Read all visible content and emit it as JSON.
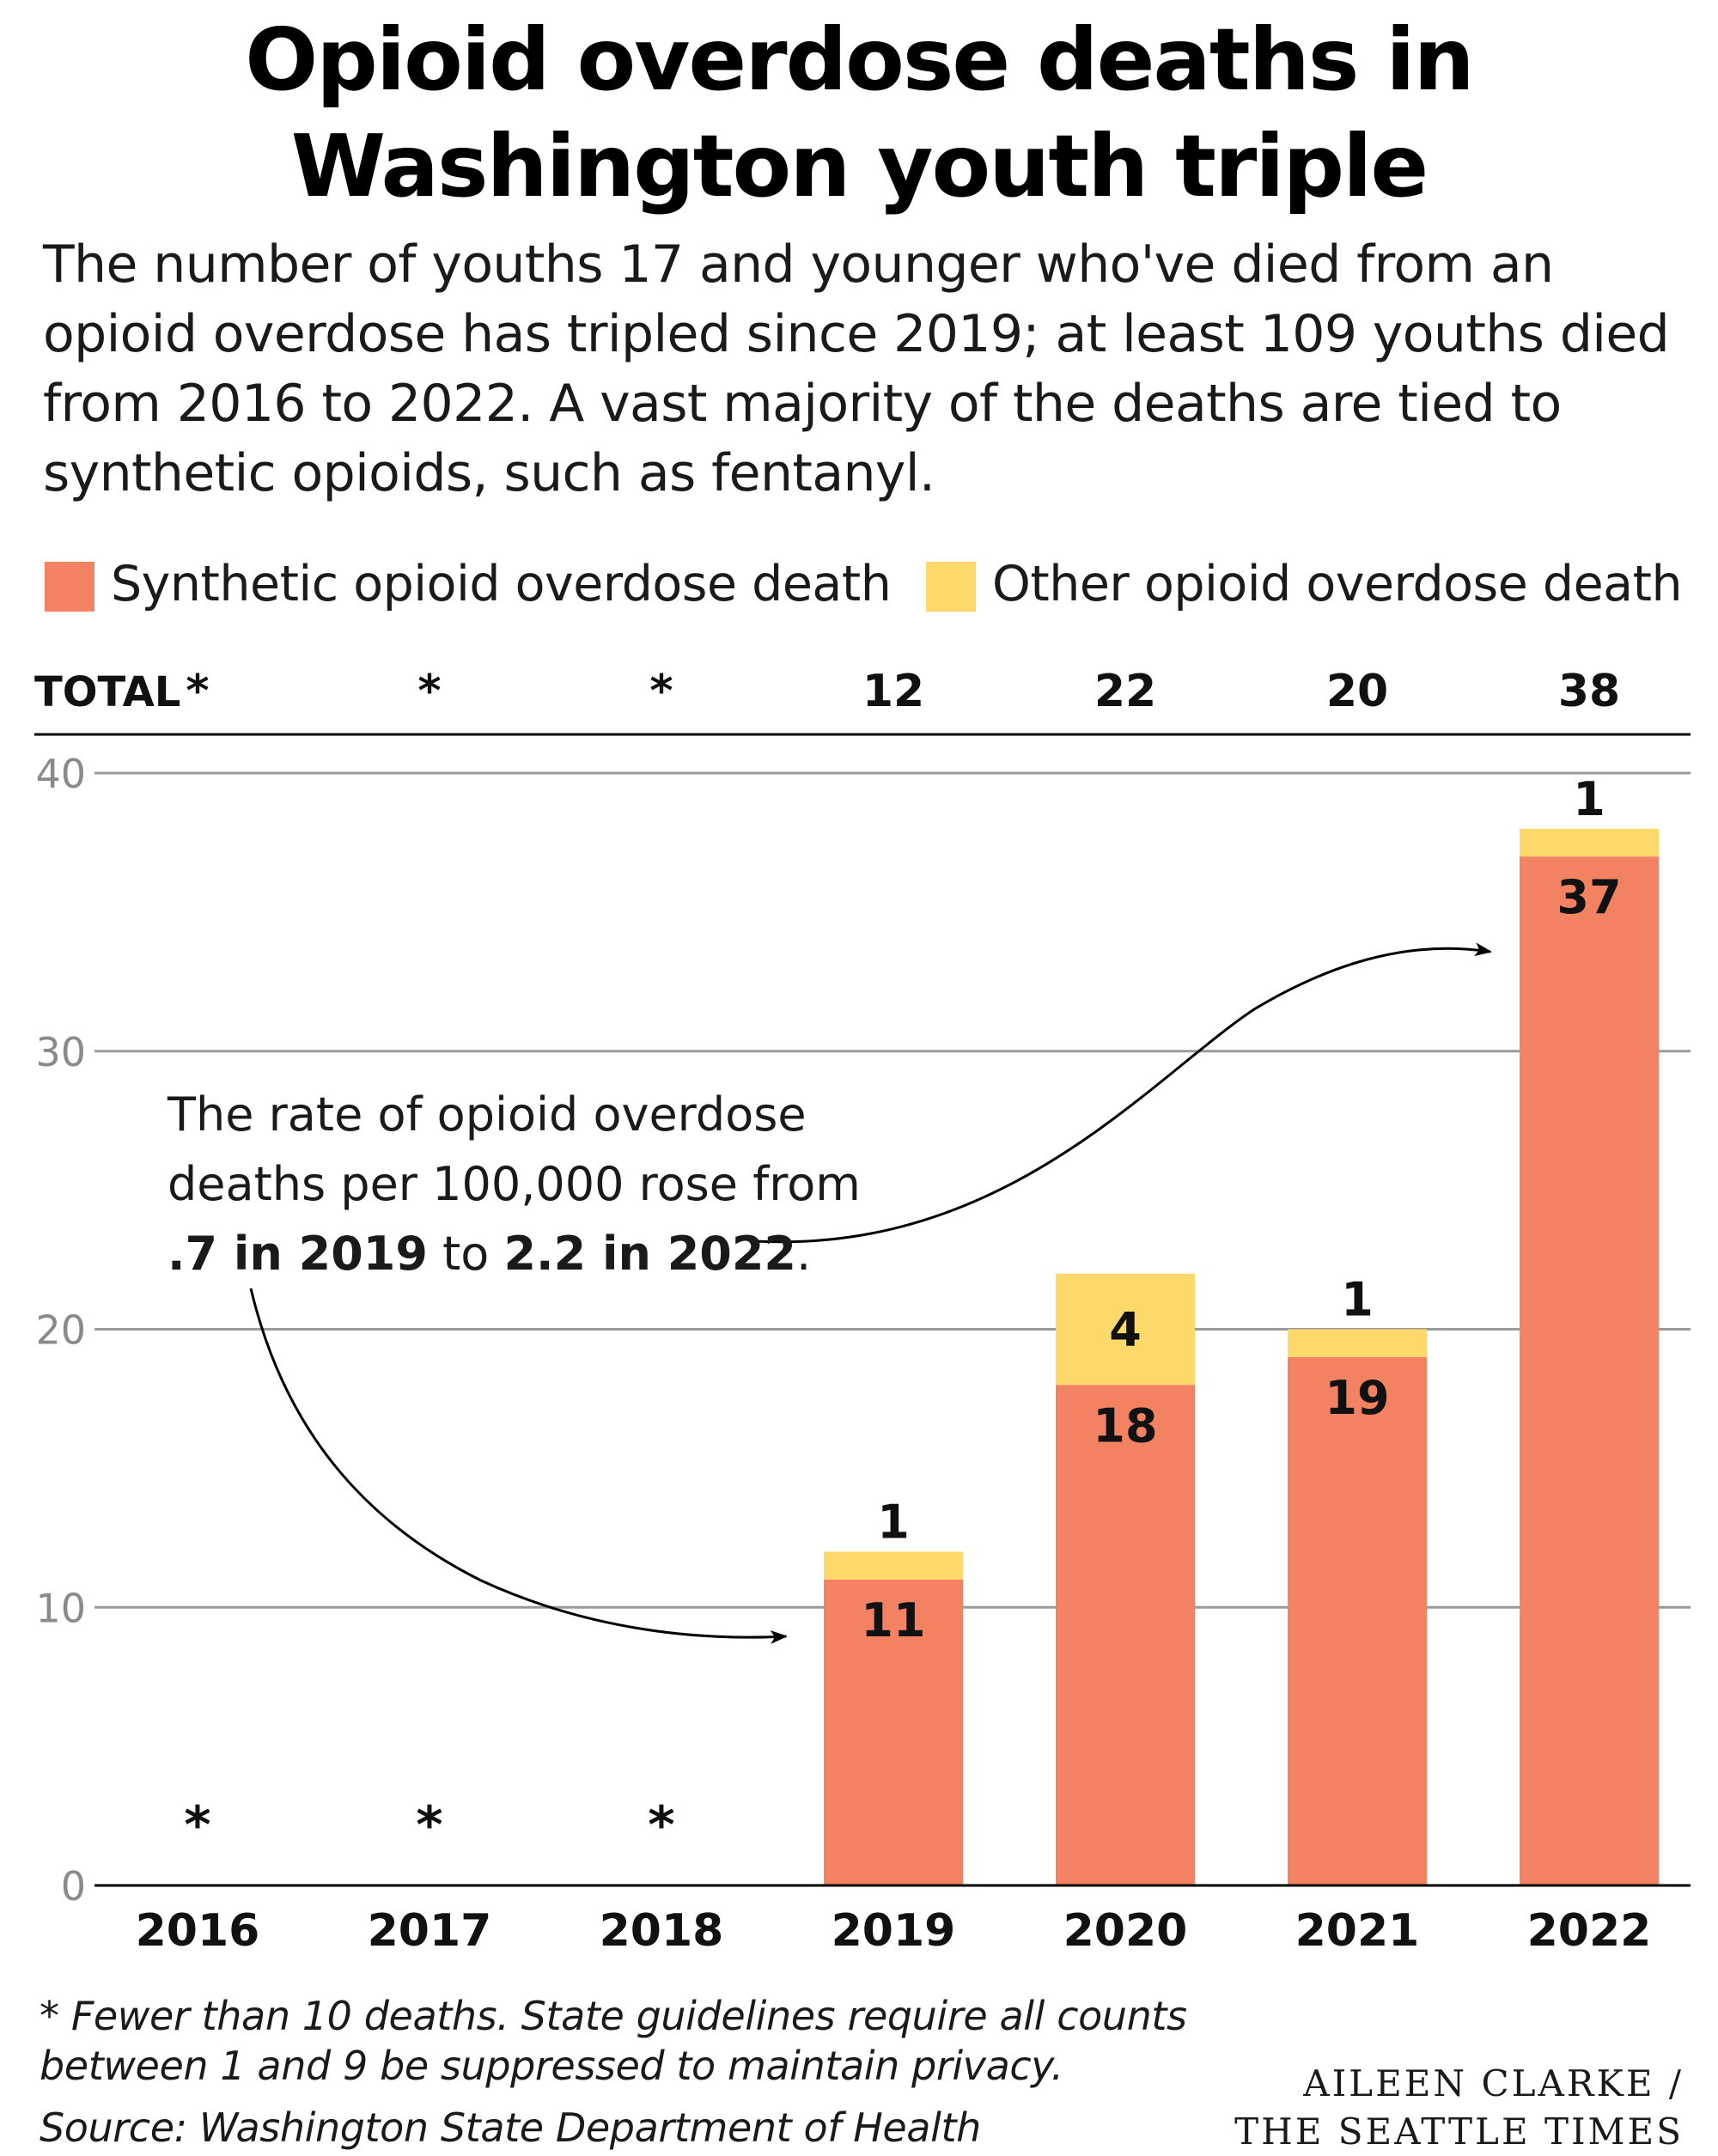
{
  "header": {
    "title_line1": "Opioid overdose deaths in",
    "title_line2": "Washington youth triple",
    "subtitle": "The number of youths 17 and younger who've died from an opioid overdose has tripled since 2019; at least 109 youths died from 2016 to 2022. A vast majority of the deaths are tied to synthetic opioids, such as fentanyl."
  },
  "legend": {
    "synthetic": "Synthetic opioid overdose death",
    "other": "Other opioid overdose death"
  },
  "colors": {
    "synthetic": "#f28262",
    "other": "#fdd86a",
    "gridline": "#9a9a9a",
    "axis_text": "#8a8a8a"
  },
  "chart_data": {
    "type": "bar",
    "stacked": true,
    "categories": [
      "2016",
      "2017",
      "2018",
      "2019",
      "2020",
      "2021",
      "2022"
    ],
    "series": [
      {
        "name": "Synthetic opioid overdose death",
        "values": [
          null,
          null,
          null,
          11,
          18,
          19,
          37
        ]
      },
      {
        "name": "Other opioid overdose death",
        "values": [
          null,
          null,
          null,
          1,
          4,
          1,
          1
        ]
      }
    ],
    "totals_label": "TOTAL",
    "totals": [
      "*",
      "*",
      "*",
      "12",
      "22",
      "20",
      "38"
    ],
    "suppressed_marker": "*",
    "ylim": [
      0,
      40
    ],
    "yticks": [
      0,
      10,
      20,
      30,
      40
    ],
    "grid": true,
    "annotation": {
      "line1": "The rate of opioid overdose",
      "line2": "deaths per 100,000 rose from",
      "line3_bold_a": ".7 in 2019",
      "line3_mid": " to ",
      "line3_bold_b": "2.2 in 2022",
      "line3_end": "."
    }
  },
  "footer": {
    "footnote": "* Fewer than 10 deaths. State guidelines require all counts between 1 and 9 be suppressed to maintain privacy.",
    "source": "Source: Washington State Department of Health",
    "credit_line1": "AILEEN CLARKE /",
    "credit_line2": "THE SEATTLE TIMES"
  }
}
